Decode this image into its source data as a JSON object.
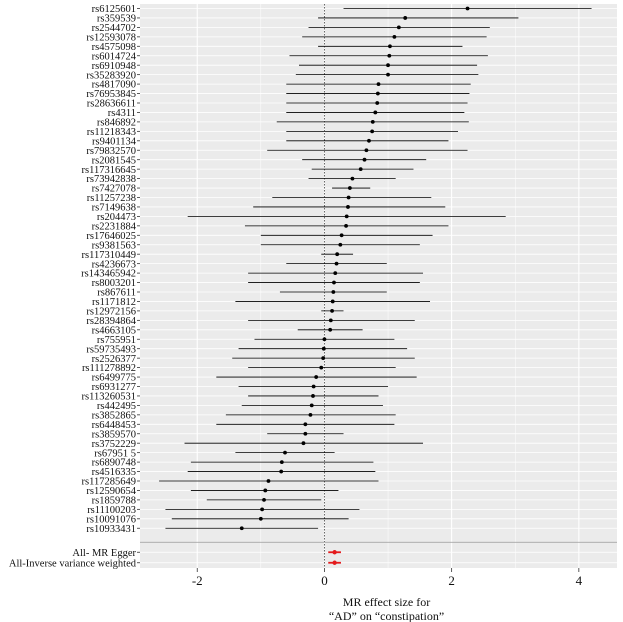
{
  "chart_data": {
    "type": "forest",
    "title": "",
    "xlabel_line1": "MR effect size for",
    "xlabel_line2": "“AD” on “constipation”",
    "xlim": [
      -2.9,
      4.6
    ],
    "xticks": [
      -2,
      0,
      2,
      4
    ],
    "xtick_labels": [
      "-2",
      "0",
      "2",
      "4"
    ],
    "reference_line": 0,
    "grid": true,
    "colors": {
      "panel": "#ebebeb",
      "grid": "#ffffff",
      "point": "#000000",
      "summary": "#e41a1c"
    },
    "snps": [
      {
        "label": "rs6125601",
        "b": 2.25,
        "lo": 0.3,
        "hi": 4.2
      },
      {
        "label": "rs359539",
        "b": 1.27,
        "lo": -0.1,
        "hi": 3.05
      },
      {
        "label": "rs2544702",
        "b": 1.17,
        "lo": -0.25,
        "hi": 2.6
      },
      {
        "label": "rs12593078",
        "b": 1.1,
        "lo": -0.35,
        "hi": 2.55
      },
      {
        "label": "rs4575098",
        "b": 1.03,
        "lo": -0.1,
        "hi": 2.17
      },
      {
        "label": "rs6014724",
        "b": 1.02,
        "lo": -0.55,
        "hi": 2.57
      },
      {
        "label": "rs6910948",
        "b": 1.0,
        "lo": -0.4,
        "hi": 2.4
      },
      {
        "label": "rs35283920",
        "b": 1.0,
        "lo": -0.45,
        "hi": 2.42
      },
      {
        "label": "rs4817090",
        "b": 0.85,
        "lo": -0.6,
        "hi": 2.3
      },
      {
        "label": "rs76953845",
        "b": 0.84,
        "lo": -0.6,
        "hi": 2.28
      },
      {
        "label": "rs28636611",
        "b": 0.83,
        "lo": -0.6,
        "hi": 2.25
      },
      {
        "label": "rs4311",
        "b": 0.8,
        "lo": -0.6,
        "hi": 2.2
      },
      {
        "label": "rs846892",
        "b": 0.76,
        "lo": -0.75,
        "hi": 2.27
      },
      {
        "label": "rs11218343",
        "b": 0.75,
        "lo": -0.6,
        "hi": 2.1
      },
      {
        "label": "rs9401134",
        "b": 0.7,
        "lo": -0.6,
        "hi": 1.95
      },
      {
        "label": "rs79832570",
        "b": 0.66,
        "lo": -0.9,
        "hi": 2.25
      },
      {
        "label": "rs2081545",
        "b": 0.63,
        "lo": -0.35,
        "hi": 1.6
      },
      {
        "label": "rs117316645",
        "b": 0.57,
        "lo": -0.2,
        "hi": 1.4
      },
      {
        "label": "rs73942838",
        "b": 0.44,
        "lo": -0.25,
        "hi": 1.12
      },
      {
        "label": "rs7427078",
        "b": 0.4,
        "lo": 0.12,
        "hi": 0.72
      },
      {
        "label": "rs11257238",
        "b": 0.38,
        "lo": -0.82,
        "hi": 1.68
      },
      {
        "label": "rs7149638",
        "b": 0.37,
        "lo": -1.12,
        "hi": 1.9
      },
      {
        "label": "rs204473",
        "b": 0.35,
        "lo": -2.15,
        "hi": 2.85
      },
      {
        "label": "rs2231884",
        "b": 0.34,
        "lo": -1.25,
        "hi": 1.95
      },
      {
        "label": "rs17646025",
        "b": 0.27,
        "lo": -1.0,
        "hi": 1.7
      },
      {
        "label": "rs9381563",
        "b": 0.25,
        "lo": -1.0,
        "hi": 1.5
      },
      {
        "label": "rs117310449",
        "b": 0.2,
        "lo": -0.05,
        "hi": 0.45
      },
      {
        "label": "rs4236673",
        "b": 0.19,
        "lo": -0.6,
        "hi": 0.98
      },
      {
        "label": "rs143465942",
        "b": 0.17,
        "lo": -1.2,
        "hi": 1.55
      },
      {
        "label": "rs8003201",
        "b": 0.15,
        "lo": -1.2,
        "hi": 1.5
      },
      {
        "label": "rs867611",
        "b": 0.14,
        "lo": -0.7,
        "hi": 0.98
      },
      {
        "label": "rs1171812",
        "b": 0.13,
        "lo": -1.4,
        "hi": 1.66
      },
      {
        "label": "rs12972156",
        "b": 0.12,
        "lo": -0.05,
        "hi": 0.3
      },
      {
        "label": "rs28394864",
        "b": 0.1,
        "lo": -1.2,
        "hi": 1.42
      },
      {
        "label": "rs4663105",
        "b": 0.09,
        "lo": -0.42,
        "hi": 0.6
      },
      {
        "label": "rs755951",
        "b": 0.0,
        "lo": -1.1,
        "hi": 1.1
      },
      {
        "label": "rs59735493",
        "b": -0.01,
        "lo": -1.35,
        "hi": 1.3
      },
      {
        "label": "rs2526377",
        "b": -0.02,
        "lo": -1.45,
        "hi": 1.42
      },
      {
        "label": "rs111278892",
        "b": -0.05,
        "lo": -1.2,
        "hi": 1.12
      },
      {
        "label": "rs6499775",
        "b": -0.13,
        "lo": -1.7,
        "hi": 1.45
      },
      {
        "label": "rs6931277",
        "b": -0.17,
        "lo": -1.35,
        "hi": 1.0
      },
      {
        "label": "rs113260531",
        "b": -0.18,
        "lo": -1.2,
        "hi": 0.85
      },
      {
        "label": "rs442495",
        "b": -0.2,
        "lo": -1.3,
        "hi": 0.92
      },
      {
        "label": "rs3852865",
        "b": -0.22,
        "lo": -1.55,
        "hi": 1.12
      },
      {
        "label": "rs6448453",
        "b": -0.3,
        "lo": -1.7,
        "hi": 1.1
      },
      {
        "label": "rs3859570",
        "b": -0.3,
        "lo": -0.9,
        "hi": 0.3
      },
      {
        "label": "rs3752229",
        "b": -0.33,
        "lo": -2.2,
        "hi": 1.55
      },
      {
        "label": "rs67951 5",
        "b": -0.62,
        "lo": -1.4,
        "hi": 0.16
      },
      {
        "label": "rs6890748",
        "b": -0.67,
        "lo": -2.1,
        "hi": 0.77
      },
      {
        "label": "rs4516335",
        "b": -0.68,
        "lo": -2.15,
        "hi": 0.8
      },
      {
        "label": "rs117285649",
        "b": -0.88,
        "lo": -2.6,
        "hi": 0.85
      },
      {
        "label": "rs12590654",
        "b": -0.93,
        "lo": -2.1,
        "hi": 0.22
      },
      {
        "label": "rs1859788",
        "b": -0.95,
        "lo": -1.85,
        "hi": -0.05
      },
      {
        "label": "rs11100203",
        "b": -0.98,
        "lo": -2.5,
        "hi": 0.55
      },
      {
        "label": "rs10091076",
        "b": -1.0,
        "lo": -2.4,
        "hi": 0.38
      },
      {
        "label": "rs10933431",
        "b": -1.3,
        "lo": -2.5,
        "hi": -0.1
      }
    ],
    "summary": [
      {
        "label": "All- MR Egger",
        "b": 0.16,
        "lo": 0.06,
        "hi": 0.26
      },
      {
        "label": "All-Inverse variance weighted",
        "b": 0.16,
        "lo": 0.06,
        "hi": 0.26
      }
    ]
  }
}
